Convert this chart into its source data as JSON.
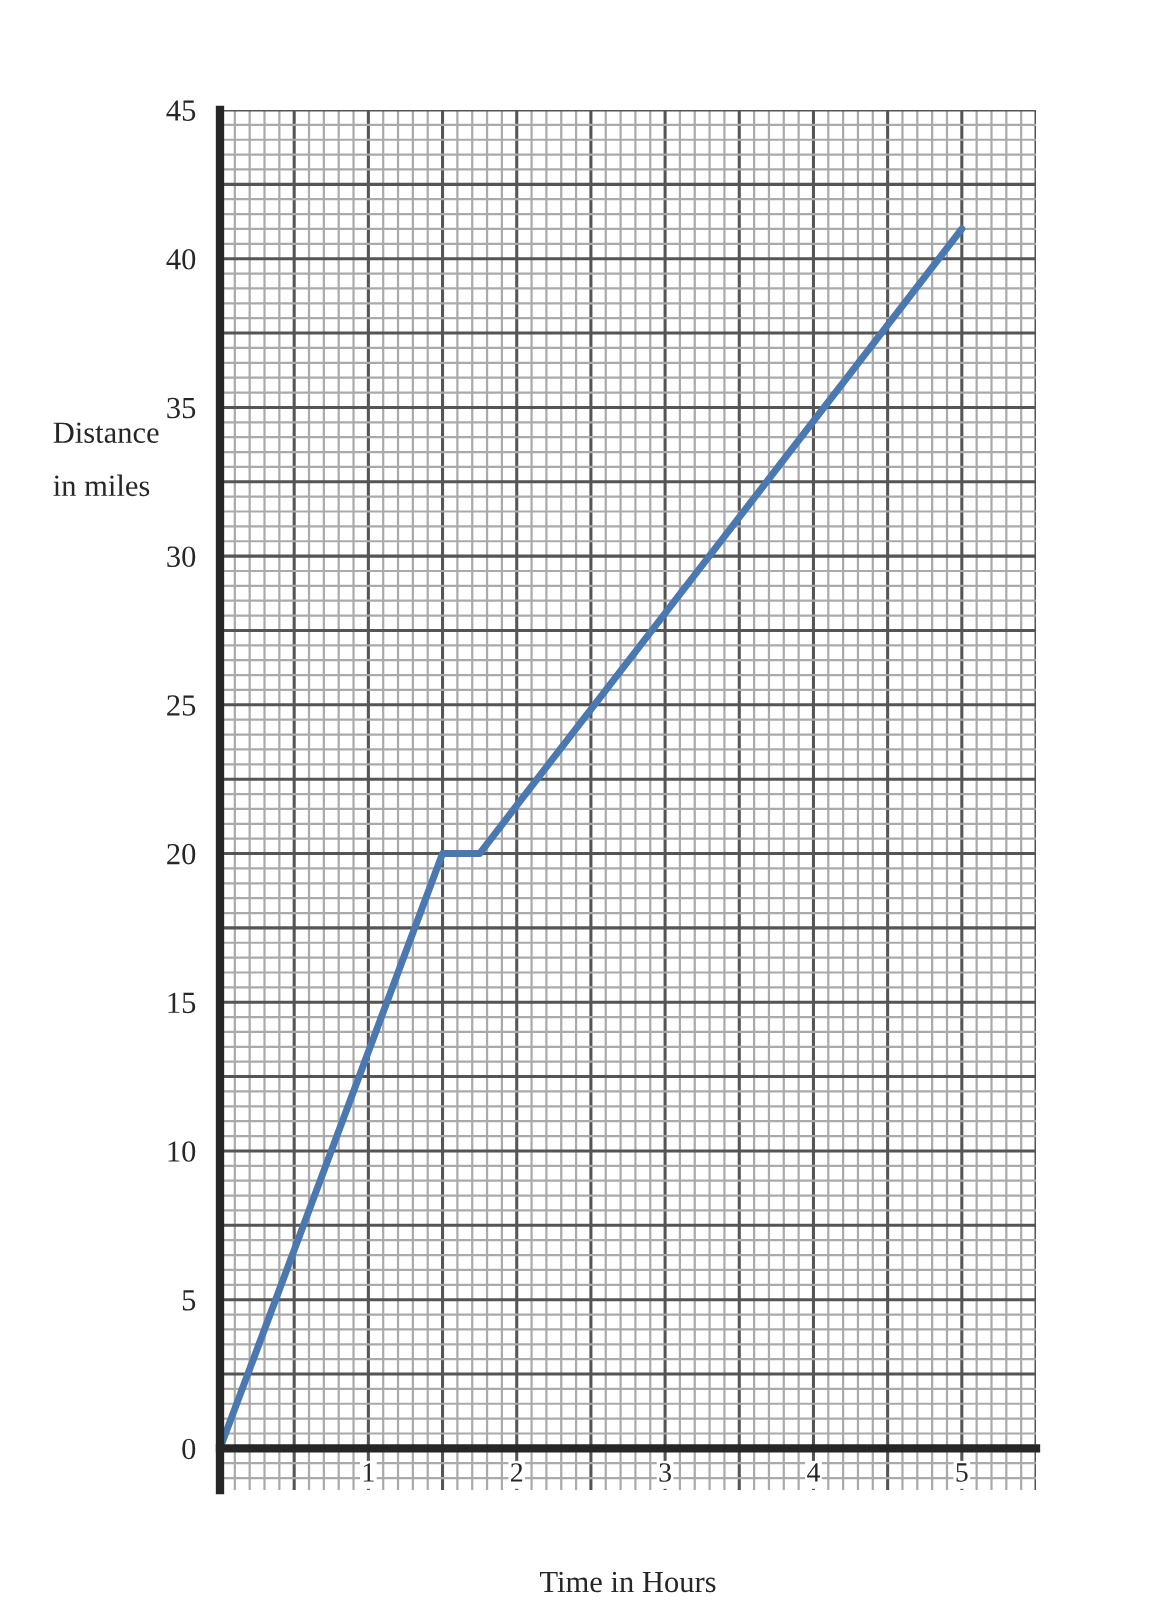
{
  "chart_data": {
    "type": "line",
    "xlabel": "Time in Hours",
    "ylabel": "Distance\nin miles",
    "x": [
      0,
      1.5,
      1.75,
      5
    ],
    "series": [
      {
        "color": "#4a78b0",
        "values": [
          0,
          20,
          20,
          41
        ]
      }
    ],
    "xlim": [
      0,
      5.5
    ],
    "ylim": [
      -1.4,
      45
    ],
    "xticks": [
      1,
      2,
      3,
      4,
      5
    ],
    "yticks": [
      0,
      5,
      10,
      15,
      20,
      25,
      30,
      35,
      40,
      45
    ],
    "grid": true,
    "marker": "none",
    "line_style": "solid"
  }
}
